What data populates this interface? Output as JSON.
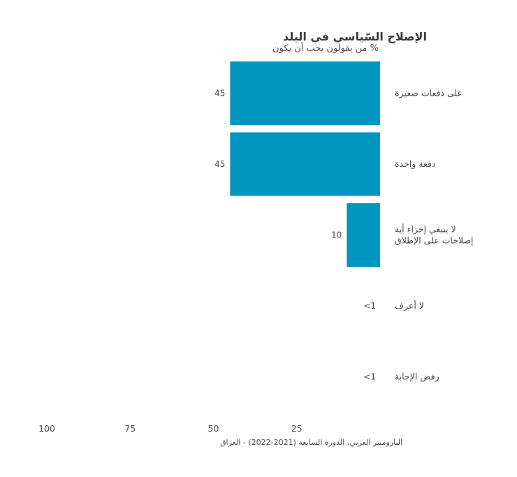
{
  "chart_data": {
    "type": "bar",
    "orientation": "horizontal",
    "title": "الإصلاح السّياسي في البلد",
    "subtitle": "% من يقولون يجب أن يكون",
    "categories": [
      [
        "على دفعات صغيرة"
      ],
      [
        "دفعة واحدة"
      ],
      [
        "لا ينبغي إجراء أية",
        "إصلاحات على الإطلاق"
      ],
      [
        "لا أعرف"
      ],
      [
        "رفض الإجابة"
      ]
    ],
    "values": [
      45,
      45,
      10,
      0.5,
      0.5
    ],
    "value_labels": [
      "45",
      "45",
      "10",
      "<1",
      "<1"
    ],
    "bar_color": "#0096BF",
    "x_ticks": [
      "25",
      "50",
      "75",
      "100"
    ],
    "xlim": [
      0,
      100
    ],
    "reversed_axis": true,
    "source": "الباروميتر العربي، الدورة السابعة (2021-2022) - العراق"
  }
}
